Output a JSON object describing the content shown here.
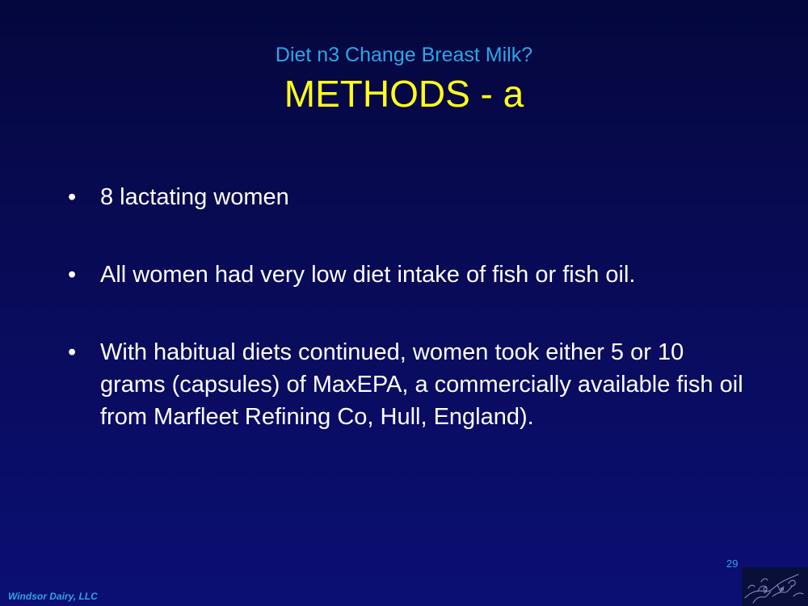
{
  "slide": {
    "subtitle": "Diet n3 Change Breast Milk?",
    "title": "METHODS - a",
    "bullet_symbol": "•",
    "bullets": [
      "8 lactating women",
      "All women had very low diet intake of fish or fish oil.",
      "With habitual diets continued, women took either 5 or 10 grams (capsules) of MaxEPA, a commercially available fish oil from Marfleet Refining Co, Hull, England)."
    ],
    "page_number": "29",
    "footer": "Windsor Dairy, LLC",
    "logo_icon": "sketch-logo-icon"
  },
  "colors": {
    "background": "#080a52",
    "subtitle": "#2fa4e8",
    "title": "#ffff1a",
    "body_text": "#ffffff"
  }
}
